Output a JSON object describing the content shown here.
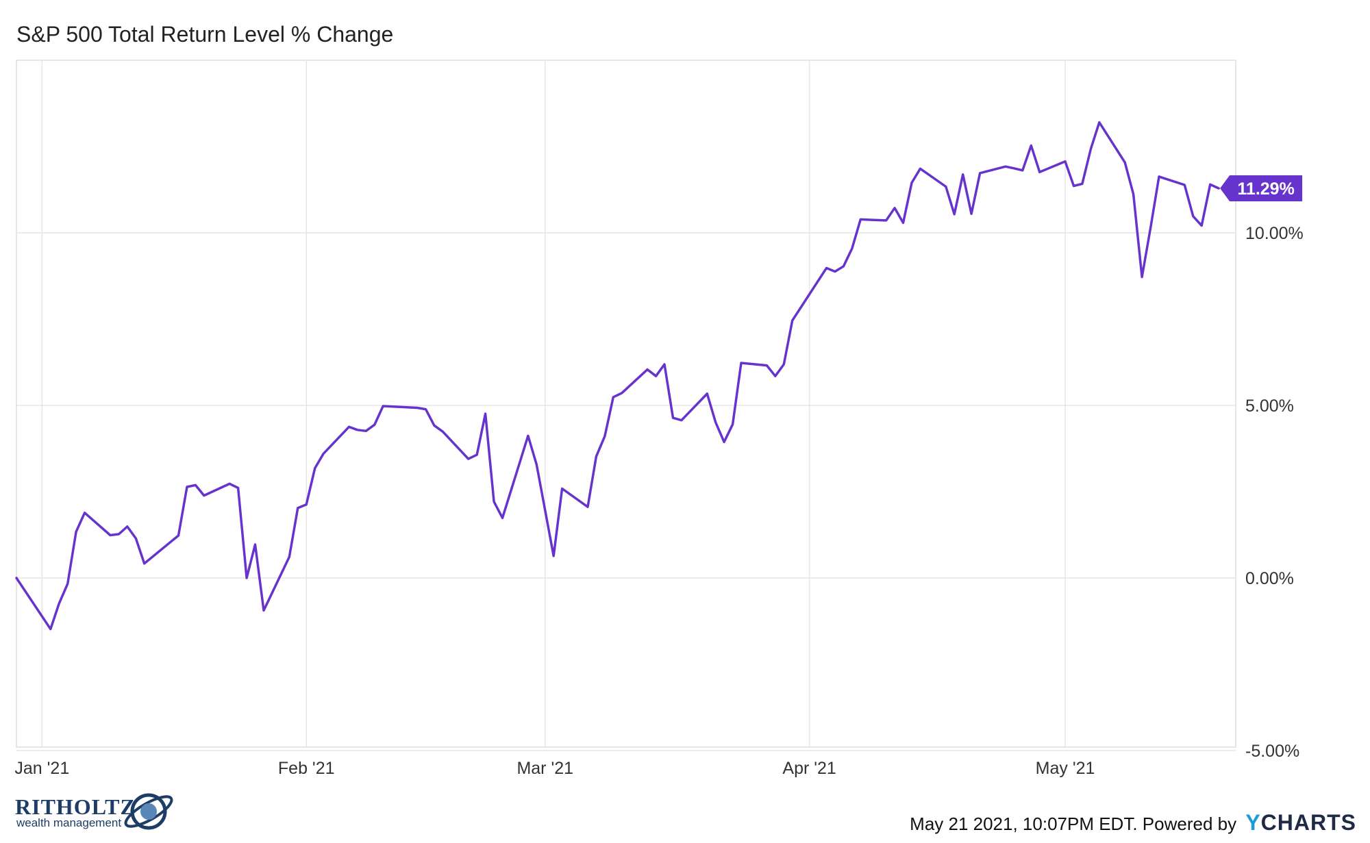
{
  "chart_data": {
    "type": "line",
    "title": "S&P 500 Total Return Level % Change",
    "y_ticks": [
      {
        "value": 10,
        "label": "10.00%"
      },
      {
        "value": 5,
        "label": "5.00%"
      },
      {
        "value": 0,
        "label": "0.00%"
      },
      {
        "value": -5,
        "label": "-5.00%"
      }
    ],
    "ylim": [
      -4.9,
      15
    ],
    "x_ticks": [
      {
        "day": 1,
        "label": "Jan '21"
      },
      {
        "day": 32,
        "label": "Feb '21"
      },
      {
        "day": 60,
        "label": "Mar '21"
      },
      {
        "day": 91,
        "label": "Apr '21"
      },
      {
        "day": 121,
        "label": "May '21"
      }
    ],
    "xlim": [
      -2,
      141
    ],
    "gridlines": true,
    "series": [
      {
        "color": "#6633cc",
        "end_label": "11.29%",
        "points": [
          [
            -2,
            0.0
          ],
          [
            2,
            -1.48
          ],
          [
            3,
            -0.74
          ],
          [
            4,
            -0.17
          ],
          [
            5,
            1.34
          ],
          [
            6,
            1.89
          ],
          [
            9,
            1.24
          ],
          [
            10,
            1.27
          ],
          [
            11,
            1.49
          ],
          [
            12,
            1.15
          ],
          [
            13,
            0.42
          ],
          [
            17,
            1.23
          ],
          [
            18,
            2.64
          ],
          [
            19,
            2.69
          ],
          [
            20,
            2.39
          ],
          [
            23,
            2.73
          ],
          [
            24,
            2.61
          ],
          [
            25,
            0.0
          ],
          [
            26,
            0.97
          ],
          [
            27,
            -0.94
          ],
          [
            30,
            0.61
          ],
          [
            31,
            2.03
          ],
          [
            32,
            2.13
          ],
          [
            33,
            3.18
          ],
          [
            34,
            3.6
          ],
          [
            37,
            4.38
          ],
          [
            38,
            4.29
          ],
          [
            39,
            4.26
          ],
          [
            40,
            4.44
          ],
          [
            41,
            4.98
          ],
          [
            45,
            4.93
          ],
          [
            46,
            4.89
          ],
          [
            47,
            4.42
          ],
          [
            48,
            4.24
          ],
          [
            51,
            3.45
          ],
          [
            52,
            3.57
          ],
          [
            53,
            4.76
          ],
          [
            54,
            2.21
          ],
          [
            55,
            1.74
          ],
          [
            58,
            4.12
          ],
          [
            59,
            3.29
          ],
          [
            61,
            0.64
          ],
          [
            62,
            2.59
          ],
          [
            65,
            2.06
          ],
          [
            66,
            3.52
          ],
          [
            67,
            4.11
          ],
          [
            68,
            5.24
          ],
          [
            69,
            5.36
          ],
          [
            72,
            6.04
          ],
          [
            73,
            5.85
          ],
          [
            74,
            6.19
          ],
          [
            75,
            4.64
          ],
          [
            76,
            4.57
          ],
          [
            79,
            5.34
          ],
          [
            80,
            4.51
          ],
          [
            81,
            3.94
          ],
          [
            82,
            4.45
          ],
          [
            83,
            6.23
          ],
          [
            86,
            6.16
          ],
          [
            87,
            5.85
          ],
          [
            88,
            6.19
          ],
          [
            89,
            7.46
          ],
          [
            93,
            8.98
          ],
          [
            94,
            8.88
          ],
          [
            95,
            9.03
          ],
          [
            96,
            9.55
          ],
          [
            97,
            10.39
          ],
          [
            100,
            10.36
          ],
          [
            101,
            10.72
          ],
          [
            102,
            10.29
          ],
          [
            103,
            11.45
          ],
          [
            104,
            11.86
          ],
          [
            107,
            11.34
          ],
          [
            108,
            10.54
          ],
          [
            109,
            11.69
          ],
          [
            110,
            10.55
          ],
          [
            111,
            11.73
          ],
          [
            114,
            11.92
          ],
          [
            115,
            11.87
          ],
          [
            116,
            11.81
          ],
          [
            117,
            12.53
          ],
          [
            118,
            11.76
          ],
          [
            121,
            12.07
          ],
          [
            122,
            11.36
          ],
          [
            123,
            11.42
          ],
          [
            124,
            12.43
          ],
          [
            125,
            13.2
          ],
          [
            128,
            12.04
          ],
          [
            129,
            11.12
          ],
          [
            130,
            8.72
          ],
          [
            131,
            10.13
          ],
          [
            132,
            11.63
          ],
          [
            135,
            11.39
          ],
          [
            136,
            10.48
          ],
          [
            137,
            10.21
          ],
          [
            138,
            11.4
          ],
          [
            139,
            11.29
          ]
        ]
      }
    ]
  },
  "branding": {
    "logo_name": "RITHOLTZ",
    "logo_sub": "wealth management",
    "footer_text": "May 21 2021, 10:07PM EDT. Powered by",
    "footer_brand_y": "Y",
    "footer_brand_rest": "CHARTS"
  }
}
